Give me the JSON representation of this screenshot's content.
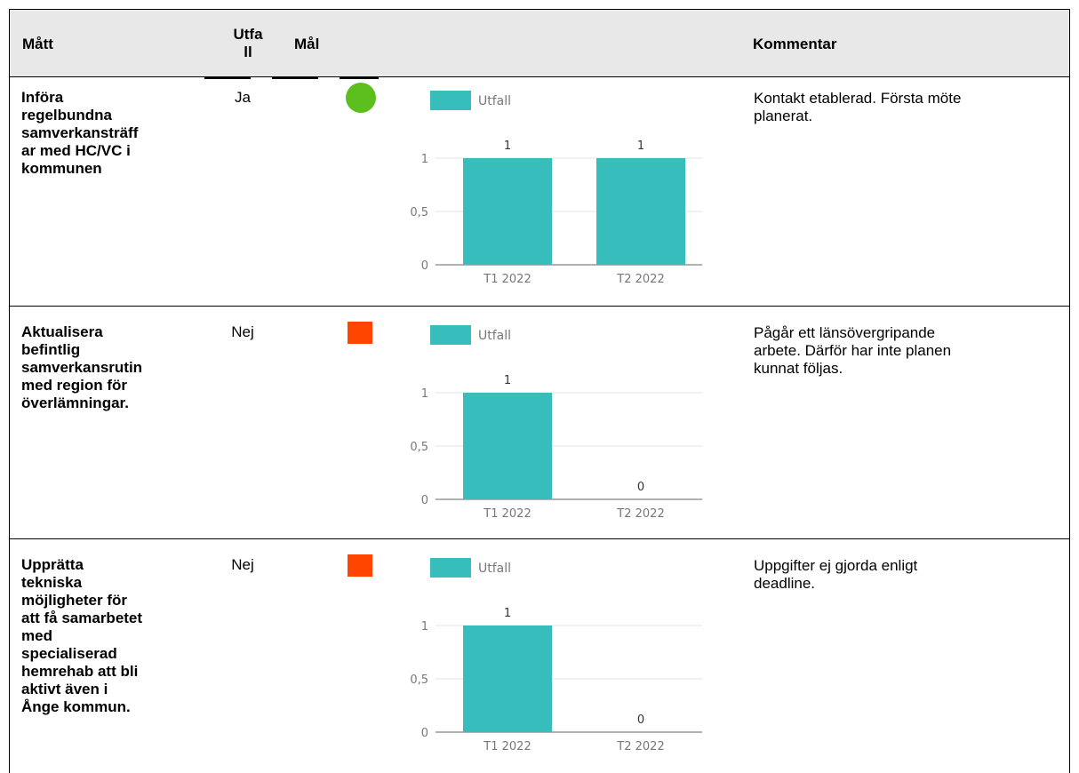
{
  "table": {
    "headers": {
      "matt": "Mått",
      "utfall": "Utfall",
      "utfall_line1": "Utfa",
      "utfall_line2": "ll",
      "mal": "Mål",
      "kommentar": "Kommentar"
    },
    "rows": [
      {
        "matt": "Införa regelbundna samverkansträffar med HC/VC i kommunen",
        "matt_lines": [
          "Införa",
          "regelbundna",
          "samverkansträff",
          "ar med HC/VC i",
          "kommunen"
        ],
        "utfall": "Ja",
        "status": "green-circle",
        "status_color": "#5cbf1e",
        "kommentar_lines": [
          "Kontakt etablerad. Första möte",
          "planerat."
        ]
      },
      {
        "matt": "Aktualisera befintlig samverkansrutin med region för överlämningar.",
        "matt_lines": [
          "Aktualisera",
          "befintlig",
          "samverkansrutin",
          "med region för",
          "överlämningar."
        ],
        "utfall": "Nej",
        "status": "red-square",
        "status_color": "#ff4500",
        "kommentar_lines": [
          "Pågår ett länsövergripande",
          "arbete. Därför har inte planen",
          "kunnat följas."
        ]
      },
      {
        "matt": "Upprätta tekniska möjligheter för att få samarbetet med specialiserad hemrehab att bli aktivt även i Ånge kommun.",
        "matt_lines": [
          "Upprätta",
          "tekniska",
          "möjligheter för",
          "att få samarbetet",
          "med",
          "specialiserad",
          "hemrehab att bli",
          "aktivt även i",
          "Ånge kommun."
        ],
        "utfall": "Nej",
        "status": "red-square",
        "status_color": "#ff4500",
        "kommentar_lines": [
          "Uppgifter ej gjorda enligt",
          "deadline."
        ]
      }
    ]
  },
  "chart_data": [
    {
      "type": "bar",
      "categories": [
        "T1 2022",
        "T2 2022"
      ],
      "series": [
        {
          "name": "Utfall",
          "values": [
            1,
            1
          ]
        }
      ],
      "ylim": [
        0,
        1
      ],
      "yticks": [
        "0",
        "0,5",
        "1"
      ],
      "legend": "top-left",
      "grid": true,
      "bar_color": "#38bdbd"
    },
    {
      "type": "bar",
      "categories": [
        "T1 2022",
        "T2 2022"
      ],
      "series": [
        {
          "name": "Utfall",
          "values": [
            1,
            0
          ]
        }
      ],
      "ylim": [
        0,
        1
      ],
      "yticks": [
        "0",
        "0,5",
        "1"
      ],
      "legend": "top-left",
      "grid": true,
      "bar_color": "#38bdbd"
    },
    {
      "type": "bar",
      "categories": [
        "T1 2022",
        "T2 2022"
      ],
      "series": [
        {
          "name": "Utfall",
          "values": [
            1,
            0
          ]
        }
      ],
      "ylim": [
        0,
        1
      ],
      "yticks": [
        "0",
        "0,5",
        "1"
      ],
      "legend": "top-left",
      "grid": true,
      "bar_color": "#38bdbd"
    }
  ]
}
